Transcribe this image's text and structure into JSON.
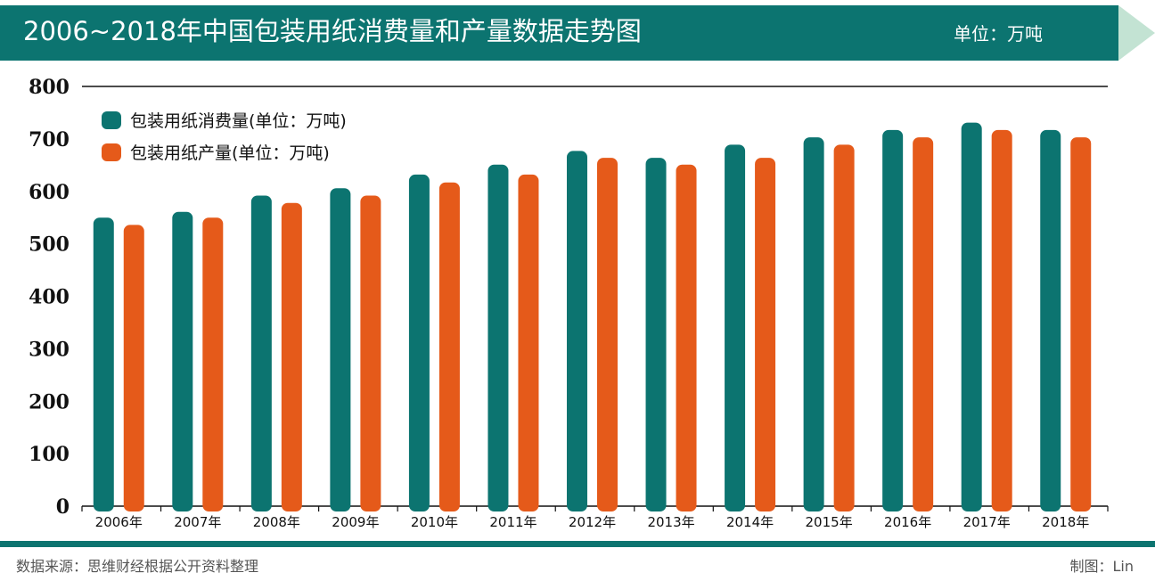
{
  "header": {
    "title": "2006~2018年中国包装用纸消费量和产量数据走势图",
    "unit": "单位：万吨"
  },
  "footer": {
    "source": "数据来源：思维财经根据公开资料整理",
    "credit": "制图：Lin"
  },
  "colors": {
    "banner": "#0c7470",
    "banner_arrow": "#c3e3d3",
    "consumption": "#0c7470",
    "production": "#e55a1a"
  },
  "chart_data": {
    "type": "bar",
    "title": "2006~2018年中国包装用纸消费量和产量数据走势图",
    "categories": [
      "2006年",
      "2007年",
      "2008年",
      "2009年",
      "2010年",
      "2011年",
      "2012年",
      "2013年",
      "2014年",
      "2015年",
      "2016年",
      "2017年",
      "2018年"
    ],
    "series": [
      {
        "name": "包装用纸消费量(单位：万吨)",
        "values": [
          550,
          561,
          592,
          606,
          632,
          651,
          677,
          664,
          689,
          703,
          717,
          731,
          717
        ]
      },
      {
        "name": "包装用纸产量(单位：万吨)",
        "values": [
          536,
          550,
          578,
          592,
          617,
          632,
          664,
          651,
          664,
          689,
          703,
          717,
          703
        ]
      }
    ],
    "yticks": [
      0,
      100,
      200,
      300,
      400,
      500,
      600,
      700,
      800
    ],
    "ylim": [
      0,
      800
    ],
    "grid": false,
    "legend": "top-left"
  }
}
